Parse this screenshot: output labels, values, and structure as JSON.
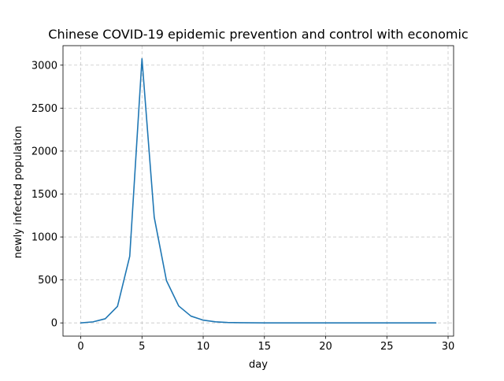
{
  "chart_data": {
    "type": "line",
    "title": "Chinese COVID-19 epidemic prevention and control with economic",
    "xlabel": "day",
    "ylabel": "newly infected population",
    "xlim": [
      -1.45,
      30.45
    ],
    "ylim": [
      -154,
      3227
    ],
    "xticks": [
      0,
      5,
      10,
      15,
      20,
      25,
      30
    ],
    "yticks": [
      0,
      500,
      1000,
      1500,
      2000,
      2500,
      3000
    ],
    "xtick_labels": [
      "0",
      "5",
      "10",
      "15",
      "20",
      "25",
      "30"
    ],
    "ytick_labels": [
      "0",
      "500",
      "1000",
      "1500",
      "2000",
      "2500",
      "3000"
    ],
    "grid": true,
    "series": [
      {
        "color": "#1f77b4",
        "x": [
          0,
          1,
          2,
          3,
          4,
          5,
          6,
          7,
          8,
          9,
          10,
          11,
          12,
          13,
          14,
          15,
          16,
          17,
          18,
          19,
          20,
          21,
          22,
          23,
          24,
          25,
          26,
          27,
          28,
          29
        ],
        "y": [
          0,
          12,
          48,
          192,
          775,
          3075,
          1230,
          492,
          197,
          79,
          32,
          13,
          5,
          2,
          1,
          0,
          0,
          0,
          0,
          0,
          0,
          0,
          0,
          0,
          0,
          0,
          0,
          0,
          0,
          0
        ]
      }
    ]
  }
}
